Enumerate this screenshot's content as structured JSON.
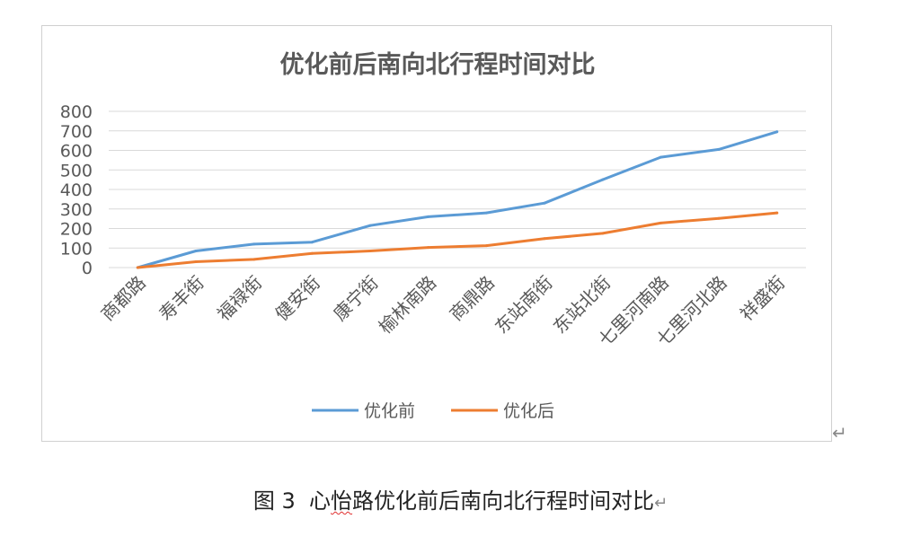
{
  "chart_data": {
    "type": "line",
    "title": "优化前后南向北行程时间对比",
    "categories": [
      "商都路",
      "寿丰街",
      "福禄街",
      "健安街",
      "康宁街",
      "榆林南路",
      "商鼎路",
      "东站南街",
      "东站北街",
      "七里河南路",
      "七里河北路",
      "祥盛街"
    ],
    "series": [
      {
        "name": "优化前",
        "color": "#5b9bd5",
        "values": [
          0,
          85,
          120,
          130,
          215,
          260,
          280,
          330,
          450,
          565,
          605,
          695
        ]
      },
      {
        "name": "优化后",
        "color": "#ed7d31",
        "values": [
          0,
          30,
          42,
          72,
          85,
          103,
          112,
          148,
          175,
          228,
          252,
          280
        ]
      }
    ],
    "ylim": [
      0,
      800
    ],
    "yticks": [
      0,
      100,
      200,
      300,
      400,
      500,
      600,
      700,
      800
    ],
    "grid": true,
    "legend": "bottom-center"
  },
  "caption": {
    "fig_label": "图 3",
    "text_pre": "心",
    "text_squiggle": "怡",
    "text_post": "路优化前后南向北行程时间对比",
    "mark": "↵"
  },
  "para_mark": "↵"
}
